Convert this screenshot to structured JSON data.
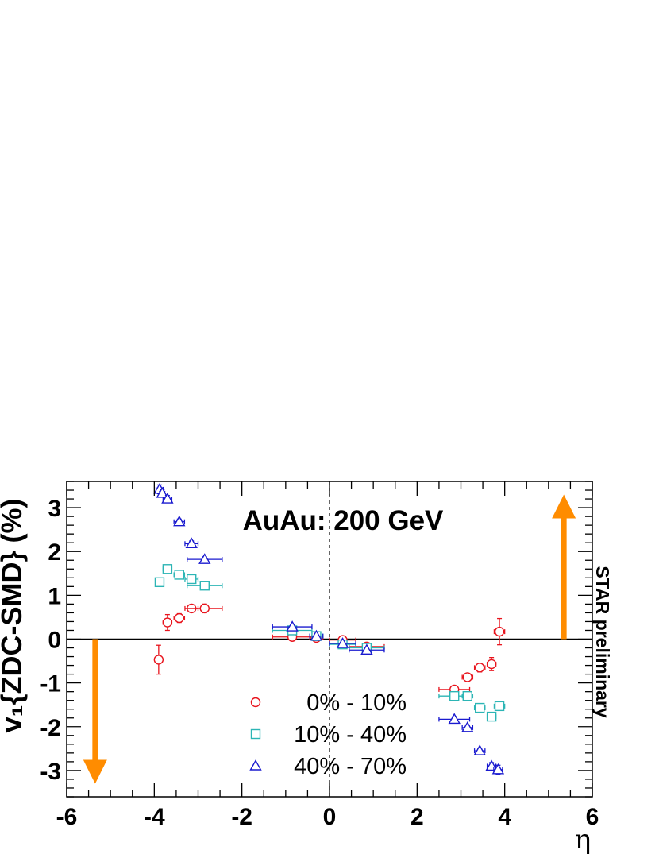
{
  "chart_data": {
    "type": "scatter",
    "title": "",
    "xlabel": "η",
    "ylabel": "v₁{ZDC-SMD} (%)",
    "xlim": [
      -6,
      6
    ],
    "ylim": [
      -3.6,
      3.6
    ],
    "x_ticks": [
      "-6",
      "-4",
      "-2",
      "0",
      "2",
      "4",
      "6"
    ],
    "y_ticks": [
      "-3",
      "-2",
      "-1",
      "0",
      "1",
      "2",
      "3"
    ],
    "annotation": "AuAu: 200 GeV",
    "side_label": "STAR preliminary",
    "grid": false,
    "legend_position": "bottom-center",
    "reference_lines": {
      "y0": "solid",
      "x0": "dashed"
    },
    "arrows": [
      {
        "x": -5.35,
        "from": 0,
        "to": -3.3,
        "direction": "down",
        "color": "#ff8c00"
      },
      {
        "x": 5.35,
        "from": 0,
        "to": 3.3,
        "direction": "up",
        "color": "#ff8c00"
      }
    ],
    "series": [
      {
        "name": "0% - 10%",
        "marker": "circle",
        "color": "#e8141d",
        "points": [
          {
            "x": -3.9,
            "y": -0.47,
            "xerr": 0.08,
            "yerr": 0.33
          },
          {
            "x": -3.7,
            "y": 0.38,
            "xerr": 0.1,
            "yerr": 0.18
          },
          {
            "x": -3.43,
            "y": 0.48,
            "xerr": 0.12,
            "yerr": 0.1
          },
          {
            "x": -3.15,
            "y": 0.7,
            "xerr": 0.15,
            "yerr": 0.08
          },
          {
            "x": -2.85,
            "y": 0.7,
            "xerr": 0.4,
            "yerr": 0.1
          },
          {
            "x": -0.85,
            "y": 0.05,
            "xerr": 0.45,
            "yerr": 0.05
          },
          {
            "x": -0.3,
            "y": 0.03,
            "xerr": 0.15,
            "yerr": 0.03
          },
          {
            "x": 0.3,
            "y": -0.02,
            "xerr": 0.3,
            "yerr": 0.03
          },
          {
            "x": 0.85,
            "y": -0.17,
            "xerr": 0.4,
            "yerr": 0.05
          },
          {
            "x": 2.85,
            "y": -1.15,
            "xerr": 0.35,
            "yerr": 0.08
          },
          {
            "x": 3.15,
            "y": -0.87,
            "xerr": 0.12,
            "yerr": 0.08
          },
          {
            "x": 3.43,
            "y": -0.65,
            "xerr": 0.12,
            "yerr": 0.1
          },
          {
            "x": 3.7,
            "y": -0.57,
            "xerr": 0.1,
            "yerr": 0.15
          },
          {
            "x": 3.88,
            "y": 0.17,
            "xerr": 0.12,
            "yerr": 0.3
          }
        ]
      },
      {
        "name": "10% - 40%",
        "marker": "square",
        "color": "#2cb5b5",
        "points": [
          {
            "x": -3.88,
            "y": 1.3,
            "xerr": 0.08,
            "yerr": 0.08
          },
          {
            "x": -3.7,
            "y": 1.6,
            "xerr": 0.1,
            "yerr": 0.06
          },
          {
            "x": -3.43,
            "y": 1.47,
            "xerr": 0.12,
            "yerr": 0.06
          },
          {
            "x": -3.15,
            "y": 1.37,
            "xerr": 0.15,
            "yerr": 0.06
          },
          {
            "x": -2.85,
            "y": 1.22,
            "xerr": 0.4,
            "yerr": 0.06
          },
          {
            "x": -0.85,
            "y": 0.2,
            "xerr": 0.45,
            "yerr": 0.04
          },
          {
            "x": -0.3,
            "y": 0.07,
            "xerr": 0.15,
            "yerr": 0.03
          },
          {
            "x": 0.3,
            "y": -0.12,
            "xerr": 0.3,
            "yerr": 0.03
          },
          {
            "x": 0.85,
            "y": -0.2,
            "xerr": 0.4,
            "yerr": 0.04
          },
          {
            "x": 2.85,
            "y": -1.3,
            "xerr": 0.35,
            "yerr": 0.06
          },
          {
            "x": 3.15,
            "y": -1.3,
            "xerr": 0.12,
            "yerr": 0.06
          },
          {
            "x": 3.43,
            "y": -1.57,
            "xerr": 0.12,
            "yerr": 0.06
          },
          {
            "x": 3.7,
            "y": -1.77,
            "xerr": 0.1,
            "yerr": 0.07
          },
          {
            "x": 3.88,
            "y": -1.53,
            "xerr": 0.12,
            "yerr": 0.06
          }
        ]
      },
      {
        "name": "40% - 70%",
        "marker": "triangle",
        "color": "#1a1acf",
        "points": [
          {
            "x": -3.88,
            "y": 3.42,
            "xerr": 0.08,
            "yerr": 0.1
          },
          {
            "x": -3.82,
            "y": 3.33,
            "xerr": 0.06,
            "yerr": 0.08
          },
          {
            "x": -3.7,
            "y": 3.2,
            "xerr": 0.1,
            "yerr": 0.08
          },
          {
            "x": -3.43,
            "y": 2.68,
            "xerr": 0.12,
            "yerr": 0.06
          },
          {
            "x": -3.15,
            "y": 2.18,
            "xerr": 0.15,
            "yerr": 0.06
          },
          {
            "x": -2.85,
            "y": 1.82,
            "xerr": 0.4,
            "yerr": 0.06
          },
          {
            "x": -0.85,
            "y": 0.28,
            "xerr": 0.45,
            "yerr": 0.04
          },
          {
            "x": -0.3,
            "y": 0.07,
            "xerr": 0.15,
            "yerr": 0.03
          },
          {
            "x": 0.3,
            "y": -0.1,
            "xerr": 0.3,
            "yerr": 0.03
          },
          {
            "x": 0.85,
            "y": -0.25,
            "xerr": 0.4,
            "yerr": 0.04
          },
          {
            "x": 2.85,
            "y": -1.83,
            "xerr": 0.35,
            "yerr": 0.06
          },
          {
            "x": 3.15,
            "y": -2.02,
            "xerr": 0.12,
            "yerr": 0.06
          },
          {
            "x": 3.43,
            "y": -2.55,
            "xerr": 0.12,
            "yerr": 0.06
          },
          {
            "x": 3.7,
            "y": -2.9,
            "xerr": 0.1,
            "yerr": 0.08
          },
          {
            "x": 3.85,
            "y": -2.98,
            "xerr": 0.1,
            "yerr": 0.1
          }
        ]
      }
    ]
  }
}
